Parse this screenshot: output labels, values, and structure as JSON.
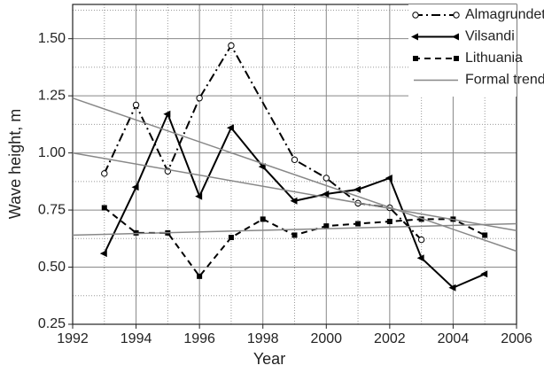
{
  "chart_data": {
    "type": "line",
    "x_label": "Year",
    "y_label": "Wave height, m",
    "xlim": [
      1992,
      2006
    ],
    "xticks": [
      1992,
      1994,
      1996,
      1998,
      2000,
      2002,
      2004,
      2006
    ],
    "x_minor_ticks": [
      1993,
      1995,
      1997,
      1999,
      2001,
      2003,
      2005
    ],
    "ylim": [
      0.25,
      1.65
    ],
    "yticks": [
      0.25,
      {
        "value": 0.5,
        "label": "0.50"
      },
      0.75,
      {
        "value": 1,
        "label": "1.00"
      },
      1.25,
      {
        "value": 1.5,
        "label": "1.50"
      }
    ],
    "y_minor_ticks": [
      0.375,
      0.625,
      0.875,
      1.125,
      1.375,
      1.625
    ],
    "grid": true,
    "legend": "top-right",
    "series": [
      {
        "name": "Almagrundet",
        "color": "#000000",
        "dash": "dashdot",
        "marker": "open-circle",
        "x": [
          1993,
          1994,
          1995,
          1996,
          1997,
          1999,
          2000,
          2001,
          2002,
          2003
        ],
        "values": [
          0.91,
          1.21,
          0.92,
          1.24,
          1.47,
          0.97,
          0.89,
          0.78,
          0.76,
          0.62
        ]
      },
      {
        "name": "Vilsandi",
        "color": "#000000",
        "dash": "solid",
        "marker": "left-triangle",
        "x": [
          1993,
          1994,
          1995,
          1996,
          1997,
          1998,
          1999,
          2000,
          2001,
          2002,
          2003,
          2004,
          2005
        ],
        "values": [
          0.56,
          0.85,
          1.17,
          0.81,
          1.11,
          0.94,
          0.79,
          0.82,
          0.84,
          0.89,
          0.54,
          0.41,
          0.47
        ]
      },
      {
        "name": "Lithuania",
        "color": "#000000",
        "dash": "dashed",
        "marker": "square",
        "x": [
          1993,
          1994,
          1995,
          1996,
          1997,
          1998,
          1999,
          2000,
          2001,
          2002,
          2003,
          2004,
          2005
        ],
        "values": [
          0.76,
          0.65,
          0.65,
          0.46,
          0.63,
          0.71,
          0.64,
          0.68,
          0.69,
          0.7,
          0.71,
          0.71,
          0.64
        ]
      },
      {
        "name": "Formal trend",
        "color": "#888888",
        "dash": "solid",
        "marker": "none",
        "x": [
          1992,
          2006
        ],
        "lines": [
          [
            1.24,
            0.57
          ],
          [
            1.0,
            0.66
          ],
          [
            0.64,
            0.69
          ]
        ]
      }
    ]
  }
}
